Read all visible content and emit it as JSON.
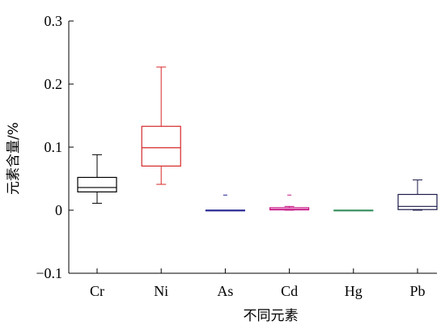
{
  "chart_data": {
    "type": "box",
    "xlabel": "不同元素",
    "ylabel": "元素含量/%",
    "ylim": [
      -0.1,
      0.3
    ],
    "yticks": [
      {
        "value": -0.1,
        "label": "−0.1"
      },
      {
        "value": 0,
        "label": "0"
      },
      {
        "value": 0.1,
        "label": "0.1"
      },
      {
        "value": 0.2,
        "label": "0.2"
      },
      {
        "value": 0.3,
        "label": "0.3"
      }
    ],
    "grid": false,
    "categories": [
      "Cr",
      "Ni",
      "As",
      "Cd",
      "Hg",
      "Pb"
    ],
    "boxes": [
      {
        "category": "Cr",
        "color": "#000000",
        "min": 0.011,
        "q1": 0.029,
        "median": 0.036,
        "q3": 0.052,
        "max": 0.088,
        "outliers": []
      },
      {
        "category": "Ni",
        "color": "#d62728",
        "min": 0.041,
        "q1": 0.07,
        "median": 0.099,
        "q3": 0.133,
        "max": 0.227,
        "outliers": []
      },
      {
        "category": "As",
        "color": "#1f1f8f",
        "min": 0.0,
        "q1": 0.0,
        "median": 0.0,
        "q3": 0.0,
        "max": 0.0,
        "outliers": [
          0.024
        ]
      },
      {
        "category": "Cd",
        "color": "#c71585",
        "min": 0.0,
        "q1": 0.0005,
        "median": 0.0015,
        "q3": 0.004,
        "max": 0.006,
        "outliers": [
          0.024
        ]
      },
      {
        "category": "Hg",
        "color": "#2e8b57",
        "min": 0.0,
        "q1": 0.0,
        "median": 0.0,
        "q3": 0.0,
        "max": 0.0,
        "outliers": []
      },
      {
        "category": "Pb",
        "color": "#1a1a4a",
        "min": 0.0,
        "q1": 0.001,
        "median": 0.006,
        "q3": 0.025,
        "max": 0.048,
        "outliers": []
      }
    ]
  }
}
